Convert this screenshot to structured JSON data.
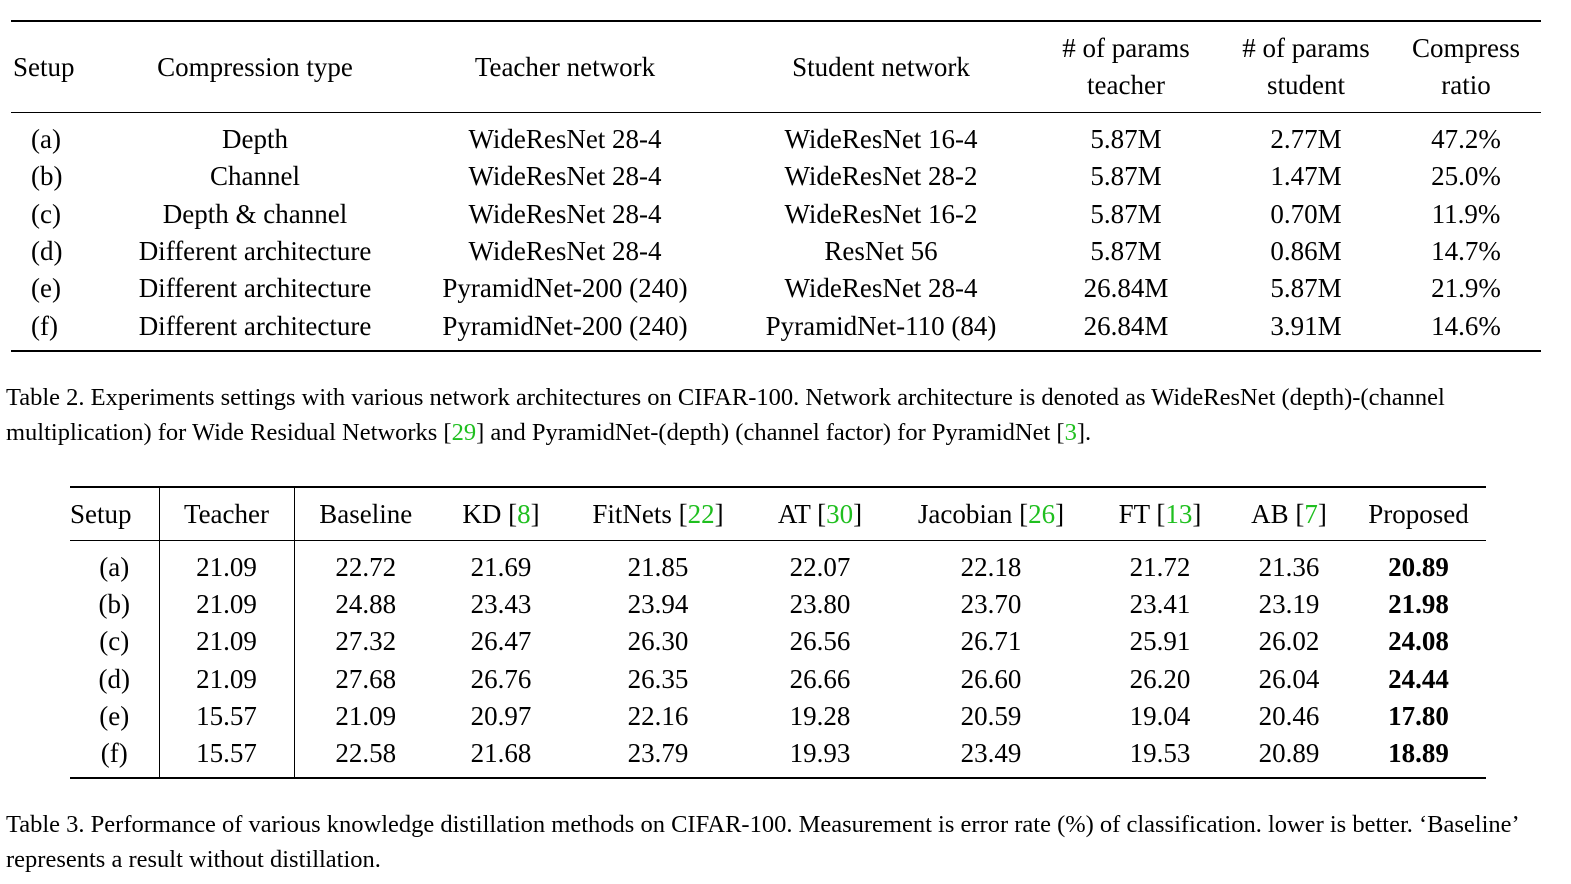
{
  "table2": {
    "headers": {
      "setup": "Setup",
      "compression_type": "Compression type",
      "teacher_network": "Teacher network",
      "student_network": "Student network",
      "params_teacher_1": "# of params",
      "params_teacher_2": "teacher",
      "params_student_1": "# of params",
      "params_student_2": "student",
      "ratio_1": "Compress",
      "ratio_2": "ratio"
    },
    "rows": [
      {
        "setup": "(a)",
        "type": "Depth",
        "teacher": "WideResNet 28-4",
        "student": "WideResNet 16-4",
        "pt": "5.87M",
        "ps": "2.77M",
        "ratio": "47.2%"
      },
      {
        "setup": "(b)",
        "type": "Channel",
        "teacher": "WideResNet 28-4",
        "student": "WideResNet 28-2",
        "pt": "5.87M",
        "ps": "1.47M",
        "ratio": "25.0%"
      },
      {
        "setup": "(c)",
        "type": "Depth & channel",
        "teacher": "WideResNet 28-4",
        "student": "WideResNet 16-2",
        "pt": "5.87M",
        "ps": "0.70M",
        "ratio": "11.9%"
      },
      {
        "setup": "(d)",
        "type": "Different architecture",
        "teacher": "WideResNet 28-4",
        "student": "ResNet 56",
        "pt": "5.87M",
        "ps": "0.86M",
        "ratio": "14.7%"
      },
      {
        "setup": "(e)",
        "type": "Different architecture",
        "teacher": "PyramidNet-200 (240)",
        "student": "WideResNet 28-4",
        "pt": "26.84M",
        "ps": "5.87M",
        "ratio": "21.9%"
      },
      {
        "setup": "(f)",
        "type": "Different architecture",
        "teacher": "PyramidNet-200 (240)",
        "student": "PyramidNet-110 (84)",
        "pt": "26.84M",
        "ps": "3.91M",
        "ratio": "14.6%"
      }
    ],
    "caption": {
      "part1": "Table 2. Experiments settings with various network architectures on CIFAR-100. Network architecture is denoted as WideResNet (depth)-(channel multiplication) for Wide Residual Networks [",
      "ref1": "29",
      "part2": "] and PyramidNet-(depth) (channel factor) for PyramidNet [",
      "ref2": "3",
      "part3": "]."
    }
  },
  "table3": {
    "headers": {
      "setup": "Setup",
      "teacher": "Teacher",
      "baseline": "Baseline",
      "kd": "KD [",
      "kd_ref": "8",
      "fitnets": "FitNets [",
      "fitnets_ref": "22",
      "at": "AT [",
      "at_ref": "30",
      "jacobian": "Jacobian [",
      "jacobian_ref": "26",
      "ft": "FT [",
      "ft_ref": "13",
      "ab": "AB [",
      "ab_ref": "7",
      "close": "]",
      "proposed": "Proposed"
    },
    "rows": [
      {
        "setup": "(a)",
        "teacher": "21.09",
        "baseline": "22.72",
        "kd": "21.69",
        "fitnets": "21.85",
        "at": "22.07",
        "jacobian": "22.18",
        "ft": "21.72",
        "ab": "21.36",
        "proposed": "20.89"
      },
      {
        "setup": "(b)",
        "teacher": "21.09",
        "baseline": "24.88",
        "kd": "23.43",
        "fitnets": "23.94",
        "at": "23.80",
        "jacobian": "23.70",
        "ft": "23.41",
        "ab": "23.19",
        "proposed": "21.98"
      },
      {
        "setup": "(c)",
        "teacher": "21.09",
        "baseline": "27.32",
        "kd": "26.47",
        "fitnets": "26.30",
        "at": "26.56",
        "jacobian": "26.71",
        "ft": "25.91",
        "ab": "26.02",
        "proposed": "24.08"
      },
      {
        "setup": "(d)",
        "teacher": "21.09",
        "baseline": "27.68",
        "kd": "26.76",
        "fitnets": "26.35",
        "at": "26.66",
        "jacobian": "26.60",
        "ft": "26.20",
        "ab": "26.04",
        "proposed": "24.44"
      },
      {
        "setup": "(e)",
        "teacher": "15.57",
        "baseline": "21.09",
        "kd": "20.97",
        "fitnets": "22.16",
        "at": "19.28",
        "jacobian": "20.59",
        "ft": "19.04",
        "ab": "20.46",
        "proposed": "17.80"
      },
      {
        "setup": "(f)",
        "teacher": "15.57",
        "baseline": "22.58",
        "kd": "21.68",
        "fitnets": "23.79",
        "at": "19.93",
        "jacobian": "23.49",
        "ft": "19.53",
        "ab": "20.89",
        "proposed": "18.89"
      }
    ],
    "caption": {
      "text": "Table 3. Performance of various knowledge distillation methods on CIFAR-100. Measurement is error rate (%) of classification. lower is better. ‘Baseline’ represents a result without distillation."
    }
  },
  "colors": {
    "citation": "#1fbf1f"
  }
}
